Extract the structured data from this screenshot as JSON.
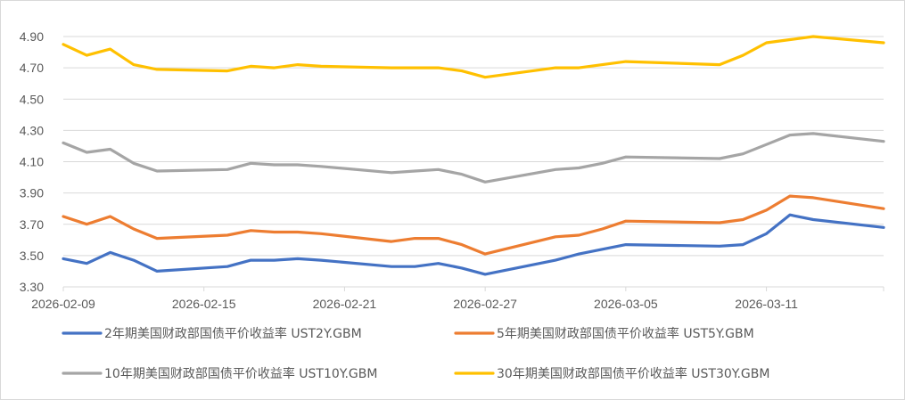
{
  "chart_data": {
    "type": "line",
    "title": "",
    "xlabel": "",
    "ylabel": "",
    "ylim": [
      3.3,
      4.9
    ],
    "yticks": [
      "3.30",
      "3.50",
      "3.70",
      "3.90",
      "4.10",
      "4.30",
      "4.50",
      "4.70",
      "4.90"
    ],
    "xticks": [
      "2026-02-09",
      "2026-02-15",
      "2026-02-21",
      "2026-02-27",
      "2026-03-05",
      "2026-03-11"
    ],
    "grid": "horizontal",
    "legend_position": "bottom",
    "x": [
      "2026-02-09",
      "2026-02-10",
      "2026-02-11",
      "2026-02-12",
      "2026-02-13",
      "2026-02-16",
      "2026-02-17",
      "2026-02-18",
      "2026-02-19",
      "2026-02-20",
      "2026-02-23",
      "2026-02-24",
      "2026-02-25",
      "2026-02-26",
      "2026-02-27",
      "2026-03-02",
      "2026-03-03",
      "2026-03-04",
      "2026-03-05",
      "2026-03-09",
      "2026-03-10",
      "2026-03-11",
      "2026-03-12",
      "2026-03-13",
      "2026-03-16"
    ],
    "series": [
      {
        "name": "2年期美国财政部国债平价收益率 UST2Y.GBM",
        "color": "#4472C4",
        "values": [
          3.48,
          3.45,
          3.52,
          3.47,
          3.4,
          3.43,
          3.47,
          3.47,
          3.48,
          3.47,
          3.43,
          3.43,
          3.45,
          3.42,
          3.38,
          3.47,
          3.51,
          3.54,
          3.57,
          3.56,
          3.57,
          3.64,
          3.76,
          3.73,
          3.68
        ]
      },
      {
        "name": "5年期美国财政部国债平价收益率 UST5Y.GBM",
        "color": "#ED7D31",
        "values": [
          3.75,
          3.7,
          3.75,
          3.67,
          3.61,
          3.63,
          3.66,
          3.65,
          3.65,
          3.64,
          3.59,
          3.61,
          3.61,
          3.57,
          3.51,
          3.62,
          3.63,
          3.67,
          3.72,
          3.71,
          3.73,
          3.79,
          3.88,
          3.87,
          3.8
        ]
      },
      {
        "name": "10年期美国财政部国债平价收益率 UST10Y.GBM",
        "color": "#A5A5A5",
        "values": [
          4.22,
          4.16,
          4.18,
          4.09,
          4.04,
          4.05,
          4.09,
          4.08,
          4.08,
          4.07,
          4.03,
          4.04,
          4.05,
          4.02,
          3.97,
          4.05,
          4.06,
          4.09,
          4.13,
          4.12,
          4.15,
          4.21,
          4.27,
          4.28,
          4.23
        ]
      },
      {
        "name": "30年期美国财政部国债平价收益率 UST30Y.GBM",
        "color": "#FFC000",
        "values": [
          4.85,
          4.78,
          4.82,
          4.72,
          4.69,
          4.68,
          4.71,
          4.7,
          4.72,
          4.71,
          4.7,
          4.7,
          4.7,
          4.68,
          4.64,
          4.7,
          4.7,
          4.72,
          4.74,
          4.72,
          4.78,
          4.86,
          4.88,
          4.9,
          4.86
        ]
      }
    ]
  }
}
